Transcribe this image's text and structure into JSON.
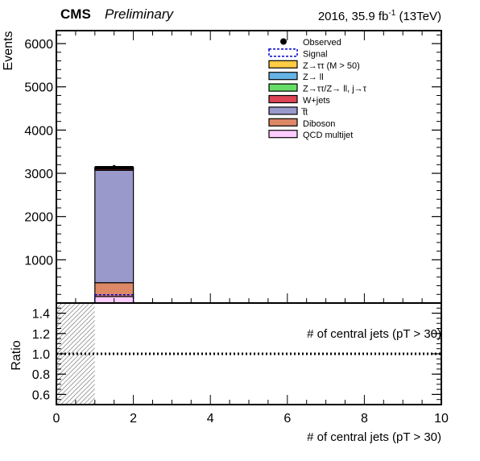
{
  "header": {
    "cms": "CMS",
    "preliminary": "Preliminary",
    "lumi_pre": "2016, 35.9 fb",
    "lumi_sup": "-1",
    "lumi_post": " (13TeV)"
  },
  "colors": {
    "observed": "#000000",
    "signal": "#0000cc",
    "ztautau": "#ffcc44",
    "zll": "#66b3e6",
    "zfake": "#66dd66",
    "wjets": "#dd4455",
    "ttbar": "#9999cc",
    "diboson": "#dd8866",
    "qcd": "#ffccff",
    "hatch": "#888888"
  },
  "chart_data": [
    {
      "type": "bar",
      "panel": "main",
      "ylabel": "Events",
      "xlim": [
        0,
        10
      ],
      "ylim": [
        0,
        6300
      ],
      "yticks": [
        1000,
        2000,
        3000,
        4000,
        5000,
        6000
      ],
      "bins": [
        {
          "x_low": 1,
          "x_high": 2,
          "stack": [
            {
              "name": "QCD multijet",
              "value": 150
            },
            {
              "name": "Diboson",
              "value": 320
            },
            {
              "name": "t̅t",
              "value": 2600
            },
            {
              "name": "W+jets",
              "value": 30
            },
            {
              "name": "Z→ττ/Z→ ll, j→τ",
              "value": 10
            },
            {
              "name": "Z→ ll",
              "value": 10
            },
            {
              "name": "Z→ττ (M > 50)",
              "value": 20
            }
          ],
          "signal": 190,
          "observed": 3150
        }
      ],
      "legend": {
        "placement": "top-right",
        "entries": [
          {
            "label": "Observed",
            "style": "marker",
            "color_key": "observed"
          },
          {
            "label": "Signal",
            "style": "dashed",
            "color_key": "signal"
          },
          {
            "label": "Z→ττ (M > 50)",
            "style": "fill",
            "color_key": "ztautau"
          },
          {
            "label": "Z→ ll",
            "style": "fill",
            "color_key": "zll"
          },
          {
            "label": "Z→ττ/Z→ ll, j→τ",
            "style": "fill",
            "color_key": "zfake"
          },
          {
            "label": "W+jets",
            "style": "fill",
            "color_key": "wjets"
          },
          {
            "label": "t̅t",
            "style": "fill",
            "color_key": "ttbar"
          },
          {
            "label": "Diboson",
            "style": "fill",
            "color_key": "diboson"
          },
          {
            "label": "QCD multijet",
            "style": "fill",
            "color_key": "qcd"
          }
        ]
      }
    },
    {
      "type": "line",
      "panel": "ratio",
      "ylabel": "Ratio",
      "xlabel": "# of central jets (pT > 30)",
      "annotation": "# of central jets (pT > 30)",
      "xlim": [
        0,
        10
      ],
      "ylim": [
        0.5,
        1.5
      ],
      "xticks": [
        0,
        2,
        4,
        6,
        8,
        10
      ],
      "yticks": [
        0.6,
        0.8,
        1.0,
        1.2,
        1.4
      ],
      "ytick_labels": [
        "0.6",
        "0.8",
        "1.0",
        "1.2",
        "1.4"
      ],
      "reference_line": 1.0,
      "uncertainty_band": {
        "x_low": 0,
        "x_high": 1
      }
    }
  ]
}
